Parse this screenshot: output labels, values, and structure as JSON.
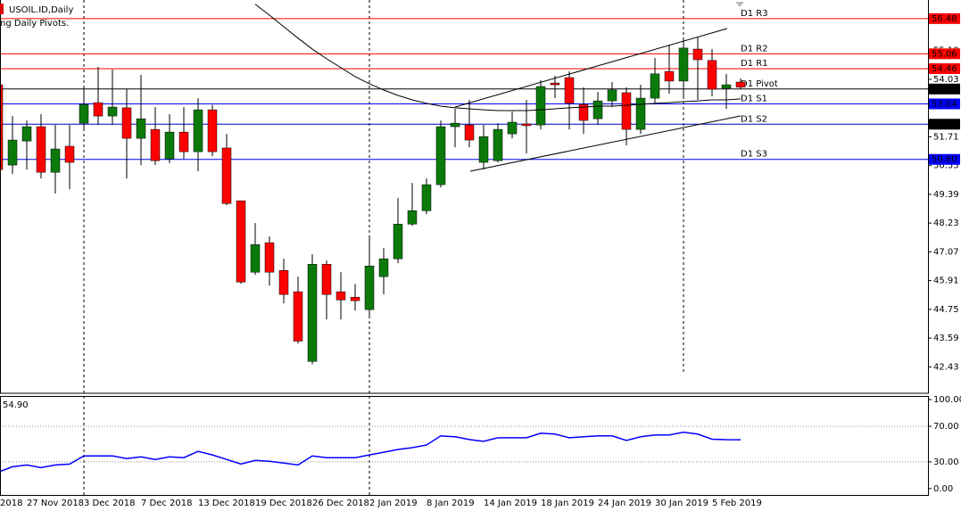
{
  "chart_data": [
    {
      "type": "candlestick",
      "title": "USOIL.ID,Daily",
      "subtitle": "ng Daily Pivots.",
      "edge_label": "2018",
      "categories": [
        null,
        null,
        "27 Nov 2018",
        null,
        null,
        null,
        "3 Dec 2018",
        null,
        null,
        null,
        "7 Dec 2018",
        null,
        null,
        null,
        "13 Dec 2018",
        null,
        null,
        null,
        "19 Dec 2018",
        null,
        null,
        null,
        "26 Dec 2018",
        null,
        null,
        null,
        "2 Jan 2019",
        null,
        null,
        null,
        "8 Jan 2019",
        null,
        null,
        null,
        "14 Jan 2019",
        null,
        null,
        null,
        "18 Jan 2019",
        null,
        null,
        null,
        "24 Jan 2019",
        null,
        null,
        null,
        "30 Jan 2019",
        null,
        null,
        null,
        "5 Feb 2019",
        null,
        null
      ],
      "open": [
        53.81,
        50.57,
        51.54,
        52.12,
        50.28,
        51.33,
        52.26,
        53.09,
        52.55,
        52.88,
        51.65,
        52.01,
        50.82,
        51.9,
        51.11,
        52.8,
        51.26,
        49.13,
        46.25,
        47.44,
        46.32,
        45.46,
        42.65,
        46.57,
        45.46,
        45.24,
        44.74,
        46.07,
        46.79,
        48.19,
        48.73,
        49.78,
        52.12,
        52.19,
        50.68,
        50.75,
        51.83,
        52.23,
        52.19,
        53.88,
        54.1,
        53.02,
        52.44,
        53.16,
        53.49,
        52.01,
        53.27,
        54.35,
        53.96,
        55.25,
        54.79,
        53.67,
        53.92
      ],
      "high": [
        53.9,
        52.55,
        52.37,
        52.62,
        52.19,
        52.19,
        53.71,
        54.53,
        54.43,
        53.63,
        54.21,
        52.91,
        52.62,
        52.91,
        53.27,
        53.0,
        51.83,
        49.13,
        48.23,
        47.69,
        46.79,
        46.07,
        46.97,
        46.72,
        46.25,
        45.78,
        47.69,
        47.22,
        49.24,
        49.85,
        50.03,
        52.37,
        52.84,
        53.2,
        52.19,
        52.26,
        52.73,
        53.2,
        54.0,
        54.17,
        54.35,
        53.71,
        53.52,
        53.92,
        53.71,
        53.81,
        54.89,
        55.43,
        55.69,
        55.72,
        55.25,
        54.25,
        54.07
      ],
      "low": [
        50.2,
        50.21,
        50.39,
        50.03,
        49.42,
        49.6,
        52.01,
        52.19,
        52.19,
        50.03,
        50.57,
        50.57,
        50.64,
        50.82,
        50.32,
        50.93,
        48.95,
        45.78,
        46.14,
        45.71,
        44.99,
        43.37,
        42.54,
        44.34,
        44.34,
        44.7,
        44.45,
        45.35,
        46.61,
        48.12,
        48.59,
        49.67,
        51.29,
        51.29,
        50.39,
        50.68,
        51.65,
        51.04,
        52.01,
        53.27,
        52.01,
        51.83,
        52.19,
        52.91,
        51.36,
        51.83,
        53.09,
        53.45,
        53.27,
        53.2,
        53.34,
        52.84,
        53.63
      ],
      "close": [
        50.39,
        51.58,
        52.12,
        50.28,
        51.22,
        50.68,
        53.02,
        52.55,
        52.91,
        51.65,
        52.44,
        50.75,
        51.9,
        51.11,
        52.8,
        51.11,
        49.02,
        45.85,
        47.36,
        46.25,
        45.35,
        43.47,
        46.57,
        45.35,
        45.13,
        45.1,
        46.5,
        46.79,
        48.19,
        48.73,
        49.78,
        52.12,
        52.26,
        51.58,
        51.72,
        52.01,
        52.3,
        52.16,
        53.74,
        53.81,
        53.06,
        52.37,
        53.16,
        53.6,
        52.01,
        53.27,
        54.25,
        53.96,
        55.29,
        54.82,
        53.63,
        53.81,
        53.71
      ],
      "up_color": "#0b7a0b",
      "down_color": "#ff0000",
      "ma_values": [
        null,
        null,
        null,
        null,
        null,
        null,
        null,
        null,
        null,
        null,
        null,
        null,
        null,
        null,
        null,
        null,
        null,
        null,
        57.06,
        56.62,
        56.15,
        55.69,
        55.25,
        54.86,
        54.5,
        54.14,
        53.85,
        53.6,
        53.38,
        53.2,
        53.06,
        52.95,
        52.88,
        52.84,
        52.8,
        52.77,
        52.77,
        52.77,
        52.8,
        52.84,
        52.88,
        52.91,
        52.95,
        52.95,
        52.98,
        53.02,
        53.06,
        53.09,
        53.13,
        53.16,
        53.2,
        53.2,
        53.24
      ],
      "ma_color": "#000000",
      "pivots": [
        {
          "name": "D1 R3",
          "value": 56.48,
          "label": "56.48",
          "color": "#ff0000",
          "box_color": "#ff0000"
        },
        {
          "name": "D1 R2",
          "value": 55.06,
          "label": "55.06",
          "color": "#ff0000",
          "box_color": "#ff0000"
        },
        {
          "name": "D1 R1",
          "value": 54.46,
          "label": "54.46",
          "color": "#ff0000",
          "box_color": "#ff0000"
        },
        {
          "name": "D1 Pivot",
          "value": 53.64,
          "label": "53.64",
          "color": "#000000",
          "box_color": "#000000"
        },
        {
          "name": "D1 S1",
          "value": 53.04,
          "label": "53.04",
          "color": "#0000ff",
          "box_color": "#0000ff"
        },
        {
          "name": "D1 S2",
          "value": 52.22,
          "label": "52.22",
          "color": "#0000cc",
          "box_color": "#000000"
        },
        {
          "name": "D1 S3",
          "value": 50.8,
          "label": "50.80",
          "color": "#0000ff",
          "box_color": "#0000ff"
        }
      ],
      "ylim": [
        41.4,
        57.23
      ],
      "yticks": [
        42.43,
        43.59,
        44.75,
        45.91,
        47.07,
        48.23,
        49.39,
        50.55,
        51.71,
        54.03,
        55.19
      ]
    },
    {
      "type": "line",
      "title": "54.90",
      "values": [
        18.4,
        24.5,
        26.5,
        23.5,
        26.5,
        27.5,
        36.7,
        36.7,
        36.7,
        33.7,
        35.7,
        32.7,
        35.7,
        34.7,
        41.8,
        37.8,
        32.7,
        27.6,
        31.6,
        30.6,
        28.6,
        26.5,
        36.7,
        34.7,
        34.7,
        34.7,
        37.8,
        40.8,
        43.9,
        45.9,
        49.0,
        59.2,
        58.2,
        55.1,
        53.1,
        57.1,
        57.1,
        57.1,
        62.2,
        61.2,
        57.1,
        58.2,
        59.2,
        59.2,
        54.1,
        58.2,
        60.2,
        60.2,
        63.3,
        61.2,
        55.5,
        55.0,
        54.9
      ],
      "color": "#0000ff",
      "ylim": [
        -8.2,
        104.1
      ],
      "yticks": [
        {
          "value": 100,
          "label": "100.00"
        },
        {
          "value": 70,
          "label": "70.00"
        },
        {
          "value": 30,
          "label": "30.00"
        },
        {
          "value": 0,
          "label": "0.00"
        }
      ],
      "levels": [
        70,
        30
      ]
    }
  ]
}
